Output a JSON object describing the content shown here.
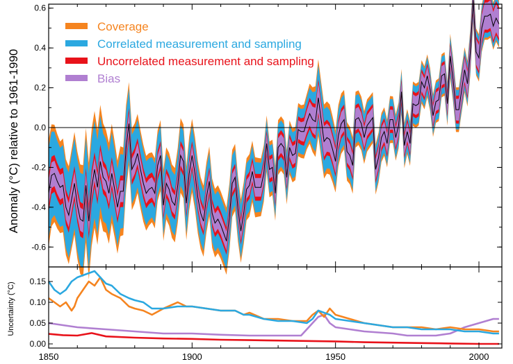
{
  "chart_data": [
    {
      "type": "area",
      "title": "",
      "xlabel": "",
      "ylabel": "Anomaly (°C) relative to 1961-1990",
      "xlim": [
        1850,
        2008
      ],
      "ylim": [
        -0.7,
        0.62
      ],
      "yticks": [
        "0.6",
        "0.4",
        "0.2",
        "0.0",
        "-0.2",
        "-0.4",
        "-0.6"
      ],
      "legend_position": "top-left",
      "legend": [
        {
          "label": "Coverage",
          "color": "#f5841f"
        },
        {
          "label": "Correlated measurement and sampling",
          "color": "#2ba8e0"
        },
        {
          "label": "Uncorrelated measurement and sampling",
          "color": "#e8121a"
        },
        {
          "label": "Bias",
          "color": "#b07fd1"
        }
      ],
      "central_color": "#000000",
      "zero_line": 0.0,
      "x": [
        1850,
        1851,
        1852,
        1853,
        1854,
        1855,
        1856,
        1857,
        1858,
        1859,
        1860,
        1861,
        1862,
        1863,
        1864,
        1865,
        1866,
        1867,
        1868,
        1869,
        1870,
        1871,
        1872,
        1873,
        1874,
        1875,
        1876,
        1877,
        1878,
        1879,
        1880,
        1881,
        1882,
        1883,
        1884,
        1885,
        1886,
        1887,
        1888,
        1889,
        1890,
        1891,
        1892,
        1893,
        1894,
        1895,
        1896,
        1897,
        1898,
        1899,
        1900,
        1901,
        1902,
        1903,
        1904,
        1905,
        1906,
        1907,
        1908,
        1909,
        1910,
        1911,
        1912,
        1913,
        1914,
        1915,
        1916,
        1917,
        1918,
        1919,
        1920,
        1921,
        1922,
        1923,
        1924,
        1925,
        1926,
        1927,
        1928,
        1929,
        1930,
        1931,
        1932,
        1933,
        1934,
        1935,
        1936,
        1937,
        1938,
        1939,
        1940,
        1941,
        1942,
        1943,
        1944,
        1945,
        1946,
        1947,
        1948,
        1949,
        1950,
        1951,
        1952,
        1953,
        1954,
        1955,
        1956,
        1957,
        1958,
        1959,
        1960,
        1961,
        1962,
        1963,
        1964,
        1965,
        1966,
        1967,
        1968,
        1969,
        1970,
        1971,
        1972,
        1973,
        1974,
        1975,
        1976,
        1977,
        1978,
        1979,
        1980,
        1981,
        1982,
        1983,
        1984,
        1985,
        1986,
        1987,
        1988,
        1989,
        1990,
        1991,
        1992,
        1993,
        1994,
        1995,
        1996,
        1997,
        1998,
        1999,
        2000,
        2001,
        2002,
        2003,
        2004,
        2005,
        2006,
        2007
      ],
      "anomaly": [
        -0.33,
        -0.24,
        -0.23,
        -0.27,
        -0.3,
        -0.29,
        -0.4,
        -0.44,
        -0.36,
        -0.28,
        -0.39,
        -0.46,
        -0.47,
        -0.29,
        -0.47,
        -0.3,
        -0.21,
        -0.3,
        -0.17,
        -0.25,
        -0.27,
        -0.33,
        -0.23,
        -0.31,
        -0.4,
        -0.32,
        -0.32,
        -0.1,
        0.02,
        -0.21,
        -0.18,
        -0.13,
        -0.21,
        -0.28,
        -0.33,
        -0.31,
        -0.3,
        -0.33,
        -0.19,
        -0.14,
        -0.39,
        -0.28,
        -0.31,
        -0.37,
        -0.39,
        -0.29,
        -0.14,
        -0.17,
        -0.38,
        -0.23,
        -0.14,
        -0.23,
        -0.35,
        -0.43,
        -0.47,
        -0.35,
        -0.27,
        -0.43,
        -0.48,
        -0.46,
        -0.49,
        -0.53,
        -0.57,
        -0.45,
        -0.28,
        -0.25,
        -0.41,
        -0.52,
        -0.43,
        -0.31,
        -0.29,
        -0.22,
        -0.3,
        -0.3,
        -0.3,
        -0.23,
        -0.08,
        -0.21,
        -0.2,
        -0.33,
        -0.1,
        -0.08,
        -0.1,
        -0.25,
        -0.1,
        -0.14,
        -0.13,
        -0.01,
        -0.02,
        -0.02,
        0.03,
        0.07,
        0.04,
        0.03,
        0.15,
        0.04,
        -0.07,
        -0.05,
        -0.06,
        -0.11,
        -0.17,
        -0.04,
        0.02,
        0.04,
        -0.12,
        -0.14,
        -0.19,
        0.04,
        0.05,
        0.02,
        -0.05,
        0.01,
        0.03,
        0.05,
        -0.21,
        -0.15,
        -0.05,
        -0.02,
        -0.08,
        0.04,
        0.04,
        -0.05,
        0.01,
        0.18,
        -0.09,
        -0.02,
        -0.08,
        0.12,
        0.11,
        0.12,
        0.23,
        0.2,
        0.26,
        0.19,
        0.06,
        0.13,
        0.14,
        0.26,
        0.27,
        0.12,
        0.36,
        0.24,
        0.09,
        0.09,
        0.19,
        0.29,
        0.22,
        0.38,
        0.64,
        0.38,
        0.35,
        0.5,
        0.56,
        0.56,
        0.57,
        0.51,
        0.55,
        0.52
      ]
    },
    {
      "type": "line",
      "title": "",
      "xlabel": "",
      "ylabel": "Uncertainty (°C)",
      "xlim": [
        1850,
        2008
      ],
      "ylim": [
        -0.01,
        0.185
      ],
      "yticks": [
        "0.15",
        "0.10",
        "0.05",
        "0.00"
      ],
      "xticks": [
        "1850",
        "1900",
        "1950",
        "2000"
      ],
      "series": [
        {
          "name": "Coverage",
          "color": "#f5841f",
          "years": [
            1850,
            1852,
            1854,
            1856,
            1858,
            1859,
            1860,
            1862,
            1864,
            1866,
            1868,
            1870,
            1872,
            1875,
            1878,
            1880,
            1883,
            1886,
            1890,
            1895,
            1898,
            1900,
            1905,
            1910,
            1915,
            1918,
            1920,
            1925,
            1930,
            1935,
            1940,
            1942,
            1944,
            1946,
            1948,
            1950,
            1955,
            1960,
            1965,
            1970,
            1975,
            1980,
            1985,
            1990,
            1995,
            2000,
            2005,
            2007
          ],
          "values": [
            0.11,
            0.1,
            0.09,
            0.1,
            0.08,
            0.09,
            0.11,
            0.13,
            0.15,
            0.14,
            0.16,
            0.13,
            0.12,
            0.11,
            0.09,
            0.085,
            0.08,
            0.07,
            0.085,
            0.1,
            0.09,
            0.09,
            0.085,
            0.08,
            0.08,
            0.07,
            0.075,
            0.06,
            0.06,
            0.055,
            0.055,
            0.07,
            0.08,
            0.065,
            0.085,
            0.07,
            0.06,
            0.05,
            0.045,
            0.04,
            0.04,
            0.04,
            0.035,
            0.04,
            0.035,
            0.035,
            0.03,
            0.03
          ]
        },
        {
          "name": "Correlated measurement and sampling",
          "color": "#2ba8e0",
          "years": [
            1850,
            1852,
            1854,
            1856,
            1858,
            1860,
            1862,
            1864,
            1866,
            1868,
            1870,
            1872,
            1875,
            1878,
            1880,
            1883,
            1886,
            1890,
            1895,
            1900,
            1905,
            1910,
            1915,
            1918,
            1920,
            1925,
            1930,
            1935,
            1940,
            1942,
            1944,
            1946,
            1948,
            1950,
            1955,
            1960,
            1965,
            1970,
            1975,
            1980,
            1985,
            1990,
            1995,
            2000,
            2005,
            2007
          ],
          "values": [
            0.15,
            0.13,
            0.12,
            0.13,
            0.15,
            0.16,
            0.165,
            0.17,
            0.175,
            0.16,
            0.145,
            0.14,
            0.12,
            0.11,
            0.105,
            0.1,
            0.085,
            0.085,
            0.09,
            0.09,
            0.085,
            0.08,
            0.08,
            0.07,
            0.07,
            0.06,
            0.055,
            0.055,
            0.05,
            0.06,
            0.08,
            0.075,
            0.07,
            0.06,
            0.055,
            0.05,
            0.045,
            0.04,
            0.04,
            0.035,
            0.035,
            0.035,
            0.03,
            0.03,
            0.025,
            0.025
          ]
        },
        {
          "name": "Uncorrelated measurement and sampling",
          "color": "#e8121a",
          "years": [
            1850,
            1855,
            1860,
            1865,
            1870,
            1880,
            1890,
            1900,
            1910,
            1920,
            1930,
            1940,
            1950,
            1960,
            1970,
            1980,
            1990,
            2000,
            2007
          ],
          "values": [
            0.024,
            0.021,
            0.02,
            0.026,
            0.018,
            0.015,
            0.013,
            0.012,
            0.01,
            0.009,
            0.008,
            0.007,
            0.006,
            0.004,
            0.003,
            0.002,
            0.001,
            0.0,
            0.0
          ]
        },
        {
          "name": "Bias",
          "color": "#b07fd1",
          "years": [
            1850,
            1855,
            1860,
            1870,
            1880,
            1890,
            1900,
            1910,
            1920,
            1930,
            1938,
            1940,
            1942,
            1944,
            1946,
            1948,
            1950,
            1955,
            1960,
            1970,
            1975,
            1980,
            1985,
            1990,
            1995,
            2000,
            2005,
            2007
          ],
          "values": [
            0.05,
            0.045,
            0.04,
            0.035,
            0.03,
            0.025,
            0.025,
            0.022,
            0.02,
            0.02,
            0.02,
            0.035,
            0.05,
            0.065,
            0.07,
            0.05,
            0.04,
            0.035,
            0.03,
            0.025,
            0.02,
            0.02,
            0.02,
            0.025,
            0.04,
            0.05,
            0.06,
            0.06
          ]
        }
      ]
    }
  ]
}
